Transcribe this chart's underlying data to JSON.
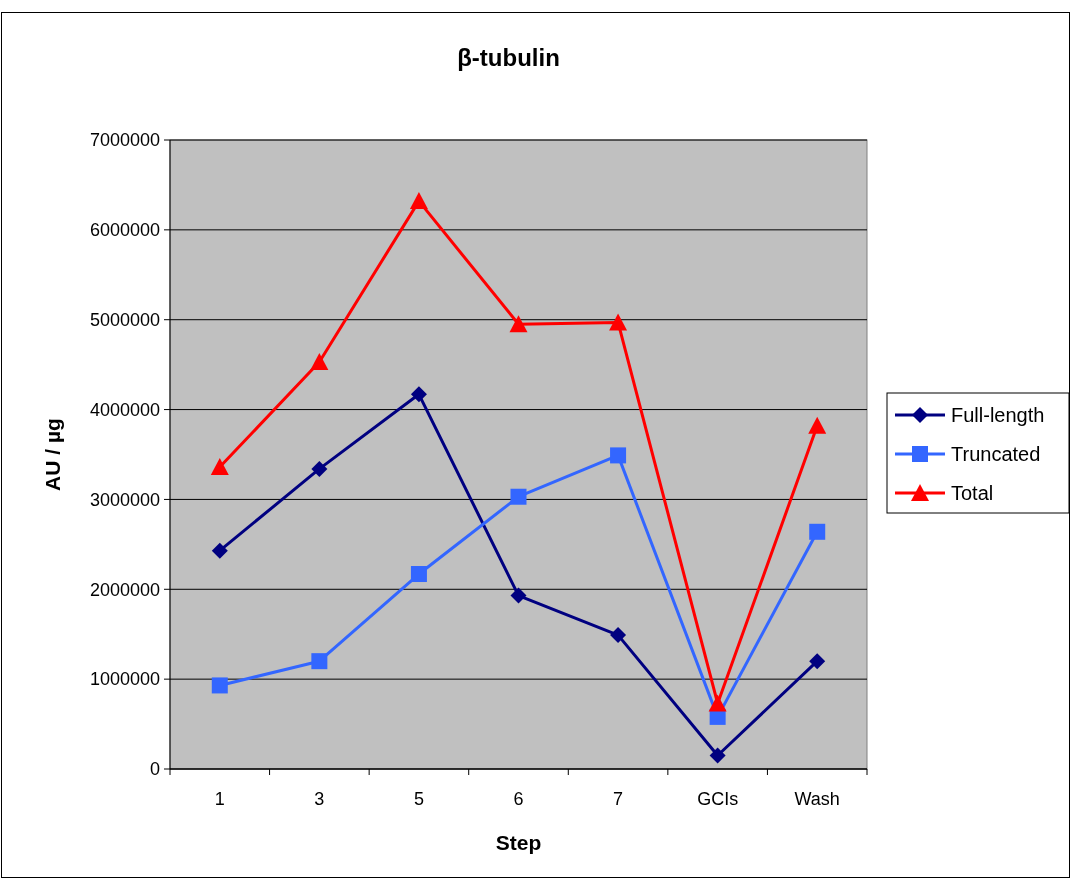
{
  "chart_data": {
    "type": "line",
    "title": "β-tubulin",
    "xlabel": "Step",
    "ylabel": "AU / µg",
    "categories": [
      "1",
      "3",
      "5",
      "6",
      "7",
      "GCIs",
      "Wash"
    ],
    "series": [
      {
        "name": "Full-length",
        "color": "#000080",
        "marker": "diamond",
        "values": [
          2430000,
          3340000,
          4170000,
          1930000,
          1490000,
          150000,
          1200000
        ]
      },
      {
        "name": "Truncated",
        "color": "#3366ff",
        "marker": "square",
        "values": [
          930000,
          1200000,
          2170000,
          3030000,
          3490000,
          580000,
          2640000
        ]
      },
      {
        "name": "Total",
        "color": "#ff0000",
        "marker": "triangle",
        "values": [
          3360000,
          4530000,
          6320000,
          4950000,
          4970000,
          730000,
          3820000
        ]
      }
    ],
    "ylim": [
      0,
      7000000
    ],
    "yticks": [
      0,
      1000000,
      2000000,
      3000000,
      4000000,
      5000000,
      6000000,
      7000000
    ],
    "grid": "y",
    "legend": "right"
  }
}
